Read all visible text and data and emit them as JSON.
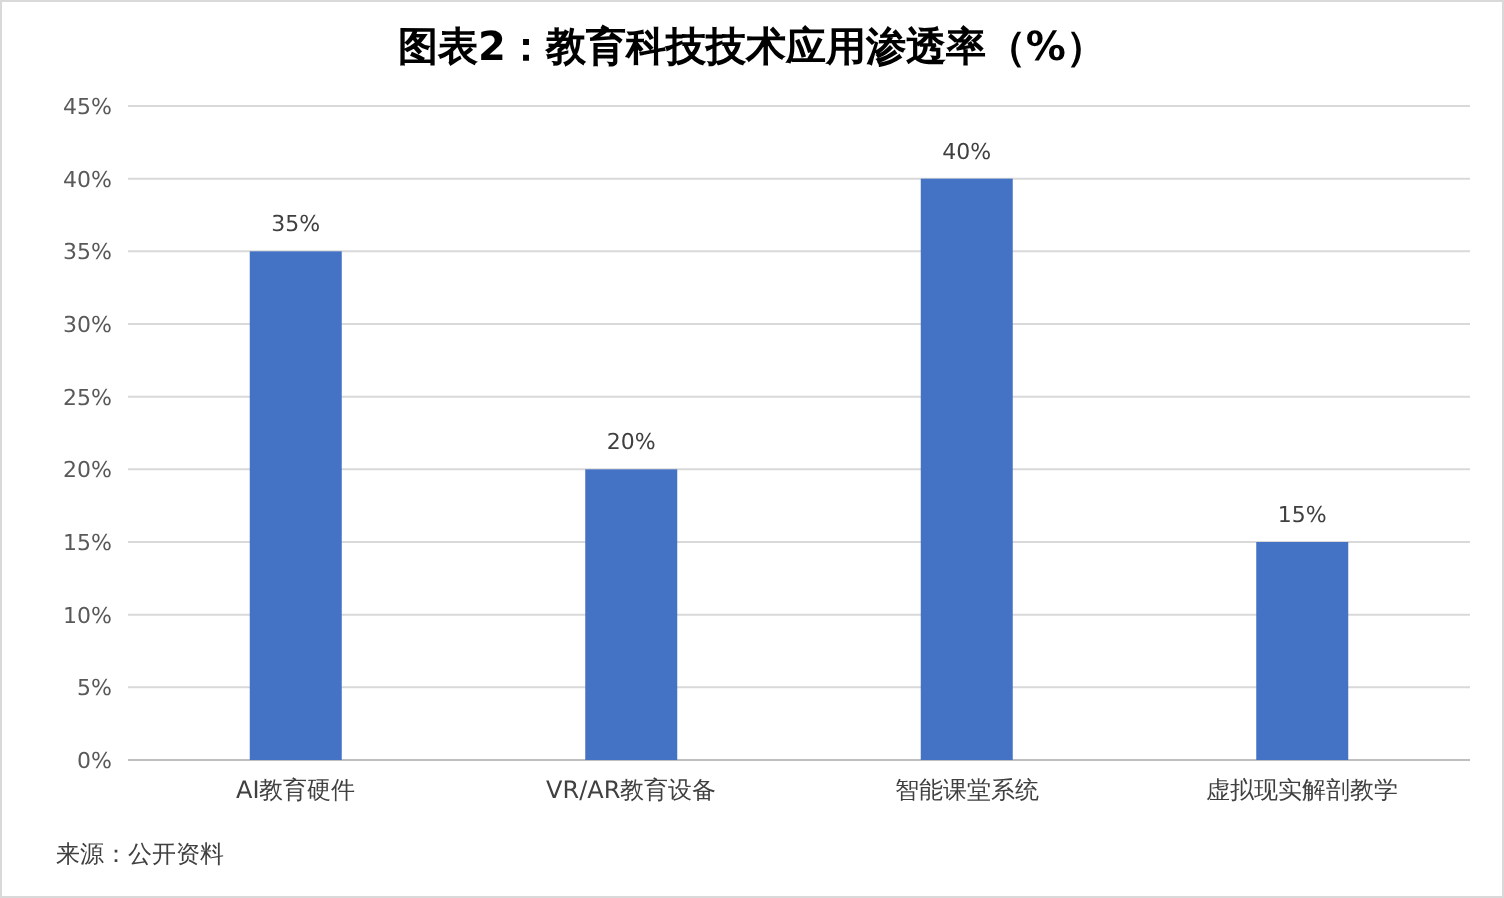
{
  "chart_data": {
    "type": "bar",
    "title": "图表2：教育科技技术应用渗透率（%）",
    "categories": [
      "AI教育硬件",
      "VR/AR教育设备",
      "智能课堂系统",
      "虚拟现实解剖教学"
    ],
    "values": [
      35,
      20,
      40,
      15
    ],
    "value_labels": [
      "35%",
      "20%",
      "40%",
      "15%"
    ],
    "color": "#4472c4",
    "ylim": [
      0,
      45
    ],
    "yticks": [
      {
        "value": 0,
        "label": "0%"
      },
      {
        "value": 5,
        "label": "5%"
      },
      {
        "value": 10,
        "label": "10%"
      },
      {
        "value": 15,
        "label": "15%"
      },
      {
        "value": 20,
        "label": "20%"
      },
      {
        "value": 25,
        "label": "25%"
      },
      {
        "value": 30,
        "label": "30%"
      },
      {
        "value": 35,
        "label": "35%"
      },
      {
        "value": 40,
        "label": "40%"
      },
      {
        "value": 45,
        "label": "45%"
      }
    ],
    "grid": "y",
    "annotations": [
      "来源：公开资料"
    ]
  }
}
